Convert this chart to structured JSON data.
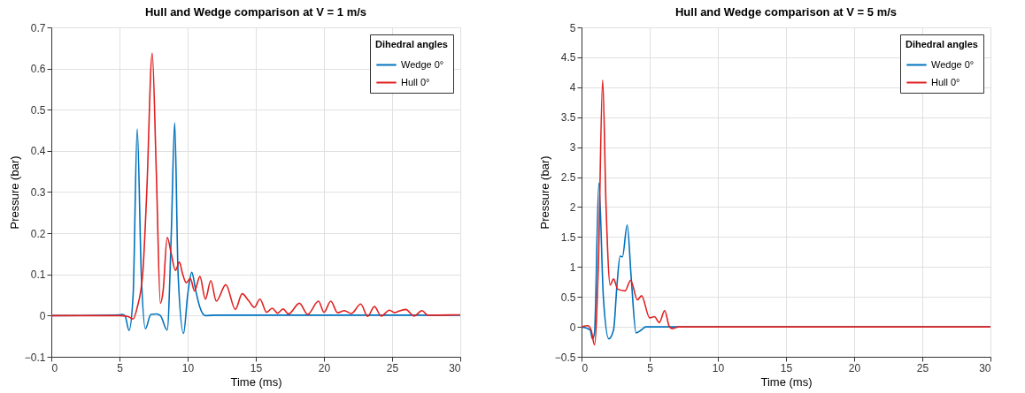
{
  "chart_data": [
    {
      "type": "line",
      "title": "Hull and Wedge comparison at V = 1 m/s",
      "xlabel": "Time (ms)",
      "ylabel": "Pressure (bar)",
      "legend_title": "Dihedral angles",
      "legend": "top right",
      "grid": true,
      "xlim": [
        0,
        30
      ],
      "xticks": [
        0,
        5,
        10,
        15,
        20,
        25,
        30
      ],
      "ylim": [
        -0.1,
        0.7
      ],
      "yticks": [
        -0.1,
        0,
        0.1,
        0.2,
        0.3,
        0.4,
        0.5,
        0.6,
        0.7
      ],
      "series": [
        {
          "name": "Wedge 0°",
          "color": "#0072bd",
          "x": [
            0,
            5,
            5.2,
            5.4,
            5.7,
            6.0,
            6.3,
            6.6,
            6.9,
            7.3,
            7.7,
            8.0,
            8.5,
            8.8,
            9.05,
            9.3,
            9.7,
            10.0,
            10.3,
            10.6,
            10.9,
            11.3,
            12,
            30
          ],
          "values": [
            0,
            0.002,
            0.003,
            0,
            -0.036,
            0.05,
            0.453,
            0.1,
            -0.032,
            0.003,
            0.004,
            0,
            -0.035,
            0.2,
            0.468,
            0.1,
            -0.043,
            0.05,
            0.105,
            0.06,
            0.02,
            0,
            0.001,
            0.001
          ]
        },
        {
          "name": "Hull 0°",
          "color": "#e02020",
          "x": [
            0,
            5,
            5.6,
            6.0,
            6.3,
            6.7,
            7.0,
            7.4,
            7.7,
            8.0,
            8.2,
            8.5,
            8.8,
            9.1,
            9.4,
            9.6,
            9.9,
            10.2,
            10.5,
            10.9,
            11.3,
            11.7,
            12.1,
            12.8,
            13.5,
            14,
            14.5,
            14.9,
            15.3,
            15.8,
            16.2,
            16.6,
            17.0,
            17.4,
            18.2,
            18.8,
            19.6,
            20.0,
            20.5,
            21,
            21.5,
            22,
            22.7,
            23.2,
            23.7,
            24.2,
            24.8,
            25.2,
            25.5,
            26,
            26.6,
            27.2,
            27.6,
            30
          ],
          "values": [
            0,
            0,
            -0.002,
            -0.008,
            0.02,
            0.1,
            0.3,
            0.637,
            0.35,
            0.03,
            0.06,
            0.19,
            0.15,
            0.11,
            0.13,
            0.105,
            0.08,
            0.09,
            0.06,
            0.095,
            0.04,
            0.085,
            0.035,
            0.075,
            0.015,
            0.053,
            0.035,
            0.02,
            0.04,
            0.008,
            0.018,
            0.006,
            0.016,
            0.004,
            0.03,
            0.003,
            0.035,
            0.008,
            0.035,
            0.007,
            0.012,
            0.005,
            0.028,
            -0.002,
            0.022,
            -0.001,
            0.013,
            0.007,
            0.011,
            0.015,
            -0.001,
            0.012,
            0.001,
            0.002
          ]
        }
      ]
    },
    {
      "type": "line",
      "title": "Hull and Wedge comparison at V = 5 m/s",
      "xlabel": "Time (ms)",
      "ylabel": "Pressure (bar)",
      "legend_title": "Dihedral angles",
      "legend": "top right",
      "grid": true,
      "xlim": [
        0,
        30
      ],
      "xticks": [
        0,
        5,
        10,
        15,
        20,
        25,
        30
      ],
      "ylim": [
        -0.5,
        5
      ],
      "yticks": [
        -0.5,
        0,
        0.5,
        1,
        1.5,
        2,
        2.5,
        3,
        3.5,
        4,
        4.5,
        5
      ],
      "series": [
        {
          "name": "Wedge 0°",
          "color": "#0072bd",
          "x": [
            0,
            0.63,
            0.8,
            0.95,
            1.27,
            1.6,
            2.0,
            2.35,
            2.6,
            2.83,
            3.0,
            3.35,
            3.65,
            4.0,
            4.4,
            4.7,
            7,
            30
          ],
          "values": [
            0,
            -0.05,
            -0.2,
            -0.1,
            2.4,
            0.5,
            -0.2,
            -0.05,
            0.7,
            1.18,
            1.17,
            1.7,
            0.8,
            -0.1,
            -0.05,
            0,
            0,
            0
          ]
        },
        {
          "name": "Hull 0°",
          "color": "#e02020",
          "x": [
            0,
            0.45,
            0.7,
            0.95,
            1.23,
            1.55,
            1.8,
            2.1,
            2.35,
            2.65,
            3.2,
            3.6,
            4.1,
            4.4,
            5.0,
            5.35,
            5.7,
            6.1,
            6.45,
            6.7,
            7.1,
            30
          ],
          "values": [
            0,
            0.02,
            -0.05,
            -0.3,
            1.0,
            4.12,
            2.0,
            0.7,
            0.8,
            0.63,
            0.6,
            0.78,
            0.45,
            0.52,
            0.15,
            0.17,
            0.07,
            0.27,
            0,
            -0.03,
            0,
            0
          ]
        }
      ]
    }
  ]
}
